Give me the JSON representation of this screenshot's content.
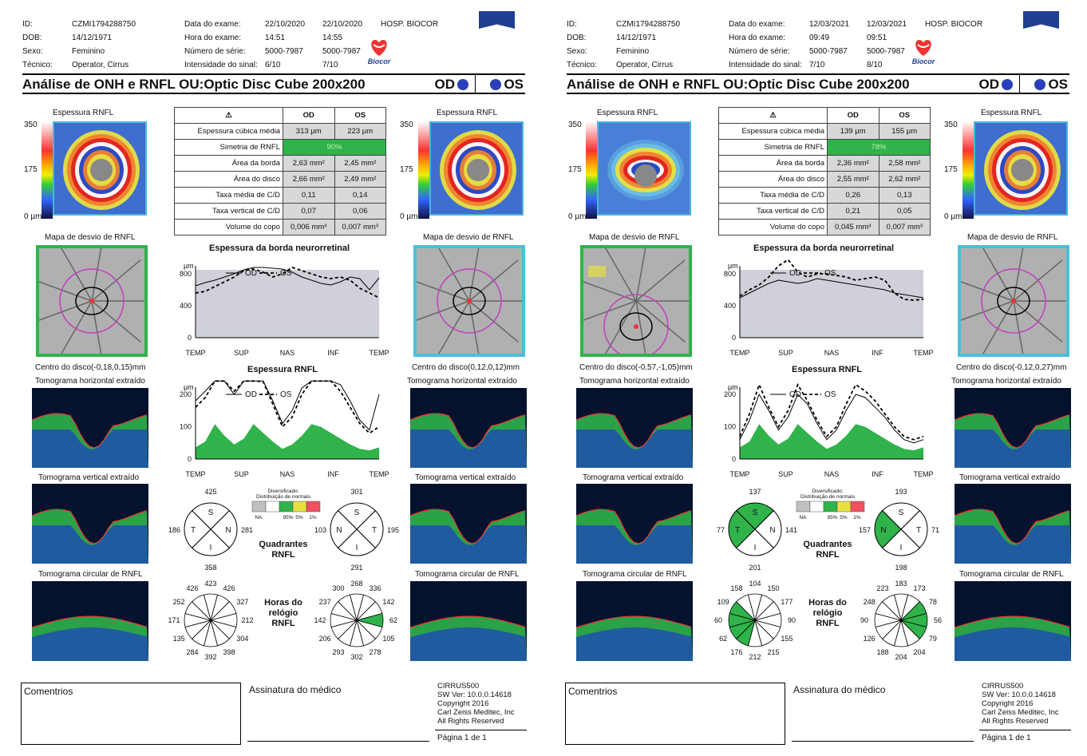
{
  "reports": [
    {
      "id_label": "ID:",
      "id": "CZMI1794288750",
      "dob_label": "DOB:",
      "dob": "14/12/1971",
      "sex_label": "Sexo:",
      "sex": "Feminino",
      "tech_label": "Técnico:",
      "tech": "Operator, Cirrus",
      "exam_date_label": "Data do exame:",
      "exam_date_od": "22/10/2020",
      "exam_date_os": "22/10/2020",
      "exam_time_label": "Hora do exame:",
      "exam_time_od": "14:51",
      "exam_time_os": "14:55",
      "serial_label": "Número de série:",
      "serial_od": "5000-7987",
      "serial_os": "5000-7987",
      "signal_label": "Intensidade do sinal:",
      "signal_od": "6/10",
      "signal_os": "7/10",
      "hospital": "HOSP. BIOCOR",
      "logo_text": "Biocor",
      "title": "Análise de ONH e RNFL OU:Optic Disc Cube 200x200",
      "od_label": "OD",
      "os_label": "OS",
      "rnfl_thickness_label": "Espessura RNFL",
      "scale_max": "350",
      "scale_mid": "175",
      "scale_min": "0 µm",
      "table": {
        "col_od": "OD",
        "col_os": "OS",
        "rows": [
          {
            "k": "Espessura cúbica média",
            "od": "313 µm",
            "os": "223 µm"
          },
          {
            "k": "Simetria de RNFL",
            "sym": "90%"
          },
          {
            "k": "Área da borda",
            "od": "2,63 mm²",
            "os": "2,45 mm²"
          },
          {
            "k": "Área do disco",
            "od": "2,66 mm²",
            "os": "2,49 mm²"
          },
          {
            "k": "Taxa média de C/D",
            "od": "0,11",
            "os": "0,14"
          },
          {
            "k": "Taxa vertical de C/D",
            "od": "0,07",
            "os": "0,06"
          },
          {
            "k": "Volume do copo",
            "od": "0,006 mm³",
            "os": "0,007 mm³"
          }
        ]
      },
      "dev_map_label": "Mapa de desvio de RNFL",
      "disc_center_od": "Centro do disco(-0,18,0,15)mm",
      "disc_center_os": "Centro do disco(0,12,0,12)mm",
      "rim_title": "Espessura da borda neurorretinal",
      "rnfl_title": "Espessura RNFL",
      "unit": "µm",
      "legend_od": "OD",
      "legend_os": "OS",
      "rim_ticks": [
        "800",
        "400",
        "0"
      ],
      "rnfl_ticks": [
        "200",
        "100",
        "0"
      ],
      "x_ticks": [
        "TEMP",
        "SUP",
        "NAS",
        "INF",
        "TEMP"
      ],
      "tomo_h": "Tomograma horizontal extraído",
      "tomo_v": "Tomograma vertical extraído",
      "tomo_c": "Tomograma circular de RNFL",
      "norm_title": "Diversificado: Distribuição de normais",
      "norm_labels": [
        "NA",
        "95%",
        "5%",
        "1%"
      ],
      "quadrants_label": "Quadrantes RNFL",
      "clock_label": "Horas do relógio RNFL",
      "quad_od": {
        "S": "425",
        "T": "186",
        "N": "281",
        "I": "358",
        "green": []
      },
      "quad_os": {
        "S": "301",
        "T": "195",
        "N": "103",
        "I": "291",
        "green": []
      },
      "clock_od": [
        "423",
        "426",
        "327",
        "212",
        "304",
        "398",
        "392",
        "284",
        "135",
        "171",
        "252",
        "426"
      ],
      "clock_os": [
        "268",
        "336",
        "142",
        "62",
        "105",
        "278",
        "302",
        "293",
        "206",
        "142",
        "237",
        "300"
      ],
      "clock_od_green": [],
      "clock_os_green": [
        3
      ],
      "rim_od": [
        650,
        690,
        720,
        760,
        800,
        850,
        880,
        880,
        870,
        860,
        820,
        760,
        720,
        680,
        660,
        700,
        760,
        740,
        600,
        750
      ],
      "rim_os": [
        560,
        580,
        640,
        700,
        760,
        840,
        860,
        820,
        760,
        800,
        880,
        840,
        800,
        760,
        740,
        760,
        720,
        620,
        560,
        500
      ],
      "rnfl_od": [
        180,
        210,
        330,
        260,
        200,
        270,
        310,
        250,
        180,
        110,
        150,
        220,
        300,
        330,
        290,
        230,
        180,
        120,
        90,
        200
      ],
      "rnfl_os": [
        160,
        190,
        300,
        250,
        210,
        260,
        290,
        240,
        170,
        100,
        130,
        200,
        270,
        300,
        260,
        210,
        160,
        110,
        80,
        100
      ],
      "footer": {
        "comments": "Comentrios",
        "signature": "Assinatura do médico",
        "software": "CIRRUS500\nSW Ver: 10.0.0.14618\nCopyright 2016\nCarl Zeiss Meditec, Inc\nAll Rights Reserved",
        "page": "Página 1 de 1"
      }
    },
    {
      "id_label": "ID:",
      "id": "CZMI1794288750",
      "dob_label": "DOB:",
      "dob": "14/12/1971",
      "sex_label": "Sexo:",
      "sex": "Feminino",
      "tech_label": "Técnico:",
      "tech": "Operator, Cirrus",
      "exam_date_label": "Data do exame:",
      "exam_date_od": "12/03/2021",
      "exam_date_os": "12/03/2021",
      "exam_time_label": "Hora do exame:",
      "exam_time_od": "09:49",
      "exam_time_os": "09:51",
      "serial_label": "Número de série:",
      "serial_od": "5000-7987",
      "serial_os": "5000-7987",
      "signal_label": "Intensidade do sinal:",
      "signal_od": "7/10",
      "signal_os": "8/10",
      "hospital": "HOSP. BIOCOR",
      "logo_text": "Biocor",
      "title": "Análise de ONH e RNFL OU:Optic Disc Cube 200x200",
      "od_label": "OD",
      "os_label": "OS",
      "rnfl_thickness_label": "Espessura RNFL",
      "scale_max": "350",
      "scale_mid": "175",
      "scale_min": "0 µm",
      "table": {
        "col_od": "OD",
        "col_os": "OS",
        "rows": [
          {
            "k": "Espessura cúbica média",
            "od": "139 µm",
            "os": "155 µm"
          },
          {
            "k": "Simetria de RNFL",
            "sym": "78%"
          },
          {
            "k": "Área da borda",
            "od": "2,36 mm²",
            "os": "2,58 mm²"
          },
          {
            "k": "Área do disco",
            "od": "2,55 mm²",
            "os": "2,62 mm²"
          },
          {
            "k": "Taxa média de C/D",
            "od": "0,26",
            "os": "0,13"
          },
          {
            "k": "Taxa vertical de C/D",
            "od": "0,21",
            "os": "0,05"
          },
          {
            "k": "Volume do copo",
            "od": "0,045 mm³",
            "os": "0,007 mm³"
          }
        ]
      },
      "dev_map_label": "Mapa de desvio de RNFL",
      "disc_center_od": "Centro do disco(-0,57,-1,05)mm",
      "disc_center_os": "Centro do disco(-0,12,0,27)mm",
      "rim_title": "Espessura da borda neurorretinal",
      "rnfl_title": "Espessura RNFL",
      "unit": "µm",
      "legend_od": "OD",
      "legend_os": "OS",
      "rim_ticks": [
        "800",
        "400",
        "0"
      ],
      "rnfl_ticks": [
        "200",
        "100",
        "0"
      ],
      "x_ticks": [
        "TEMP",
        "SUP",
        "NAS",
        "INF",
        "TEMP"
      ],
      "tomo_h": "Tomograma horizontal extraído",
      "tomo_v": "Tomograma vertical extraído",
      "tomo_c": "Tomograma circular de RNFL",
      "norm_title": "Diversificado: Distribuição de normais",
      "norm_labels": [
        "NA",
        "95%",
        "5%",
        "1%"
      ],
      "quadrants_label": "Quadrantes RNFL",
      "clock_label": "Horas do relógio RNFL",
      "quad_od": {
        "S": "137",
        "T": "77",
        "N": "141",
        "I": "201",
        "green": [
          "S",
          "T"
        ]
      },
      "quad_os": {
        "S": "193",
        "T": "71",
        "N": "157",
        "I": "198",
        "green": [
          "T"
        ]
      },
      "clock_od": [
        "104",
        "150",
        "177",
        "90",
        "155",
        "215",
        "212",
        "176",
        "62",
        "60",
        "109",
        "158"
      ],
      "clock_os": [
        "183",
        "173",
        "78",
        "56",
        "79",
        "204",
        "204",
        "188",
        "126",
        "90",
        "248",
        "223"
      ],
      "clock_od_green": [
        7,
        8,
        9,
        10
      ],
      "clock_os_green": [
        2,
        3,
        4
      ],
      "rim_od": [
        500,
        560,
        620,
        680,
        720,
        700,
        680,
        700,
        740,
        720,
        700,
        680,
        660,
        640,
        620,
        600,
        560,
        540,
        520,
        500
      ],
      "rim_os": [
        520,
        600,
        660,
        760,
        900,
        1000,
        820,
        760,
        800,
        800,
        780,
        760,
        720,
        740,
        760,
        720,
        560,
        480,
        470,
        480
      ],
      "rnfl_od": [
        60,
        120,
        200,
        150,
        90,
        130,
        200,
        170,
        110,
        60,
        90,
        150,
        200,
        190,
        160,
        130,
        90,
        60,
        50,
        60
      ],
      "rnfl_os": [
        70,
        140,
        230,
        160,
        100,
        150,
        230,
        180,
        120,
        70,
        100,
        170,
        230,
        210,
        180,
        140,
        100,
        70,
        60,
        70
      ],
      "footer": {
        "comments": "Comentrios",
        "signature": "Assinatura do médico",
        "software": "CIRRUS500\nSW Ver: 10.0.0.14618\nCopyright 2016\nCarl Zeiss Meditec, Inc\nAll Rights Reserved",
        "page": "Página 1 de 1"
      }
    }
  ]
}
